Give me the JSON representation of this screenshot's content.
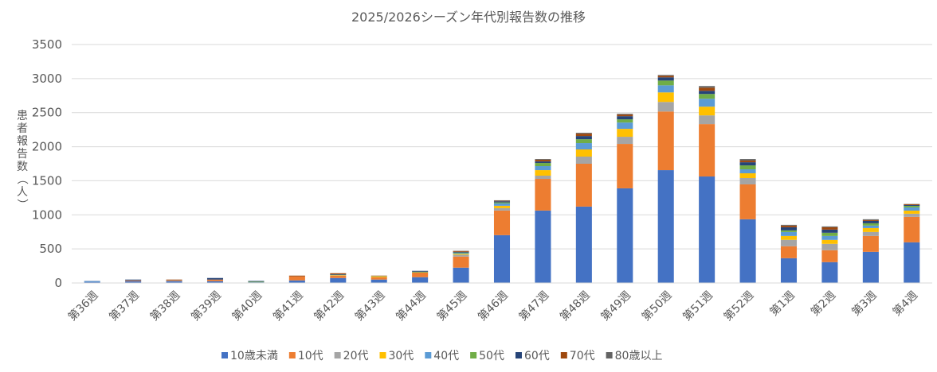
{
  "chart_data": {
    "type": "bar",
    "stacked": true,
    "title": "2025/2026シーズン年代別報告数の推移",
    "xlabel": "",
    "ylabel": "患者報告数（人）",
    "ylim": [
      0,
      3500
    ],
    "yticks": [
      0,
      500,
      1000,
      1500,
      2000,
      2500,
      3000,
      3500
    ],
    "grid": true,
    "legend_position": "bottom",
    "categories": [
      "第36週",
      "第37週",
      "第38週",
      "第39週",
      "第40週",
      "第41週",
      "第42週",
      "第43週",
      "第44週",
      "第45週",
      "第46週",
      "第47週",
      "第48週",
      "第49週",
      "第50週",
      "第51週",
      "第52週",
      "第1週",
      "第2週",
      "第3週",
      "第4週"
    ],
    "series": [
      {
        "name": "10歳未満",
        "color": "#4472C4",
        "values": [
          16,
          27,
          27,
          27,
          10,
          38,
          73,
          50,
          85,
          225,
          702,
          1063,
          1121,
          1389,
          1656,
          1563,
          935,
          364,
          306,
          457,
          597
        ]
      },
      {
        "name": "10代",
        "color": "#ED7D31",
        "values": [
          0,
          11,
          6,
          23,
          0,
          58,
          35,
          35,
          70,
          163,
          361,
          465,
          629,
          652,
          861,
          769,
          512,
          175,
          175,
          233,
          373
        ]
      },
      {
        "name": "20代",
        "color": "#A5A5A5",
        "values": [
          0,
          0,
          5,
          0,
          0,
          0,
          2,
          0,
          0,
          23,
          35,
          47,
          105,
          105,
          140,
          128,
          93,
          94,
          93,
          58,
          46
        ]
      },
      {
        "name": "30代",
        "color": "#FFC000",
        "values": [
          0,
          0,
          0,
          0,
          0,
          0,
          5,
          11,
          0,
          12,
          35,
          81,
          105,
          116,
          140,
          128,
          70,
          57,
          58,
          58,
          46
        ]
      },
      {
        "name": "40代",
        "color": "#5B9BD5",
        "values": [
          11,
          0,
          0,
          0,
          0,
          0,
          0,
          0,
          0,
          11,
          35,
          59,
          93,
          93,
          104,
          116,
          58,
          58,
          58,
          36,
          47
        ]
      },
      {
        "name": "50代",
        "color": "#70AD47",
        "values": [
          0,
          0,
          0,
          0,
          10,
          0,
          5,
          6,
          11,
          12,
          15,
          46,
          57,
          47,
          70,
          70,
          58,
          24,
          47,
          34,
          23
        ]
      },
      {
        "name": "60代",
        "color": "#264478",
        "values": [
          3,
          12,
          0,
          23,
          10,
          0,
          8,
          0,
          12,
          11,
          16,
          23,
          47,
          46,
          47,
          46,
          46,
          46,
          46,
          35,
          12
        ]
      },
      {
        "name": "70代",
        "color": "#9E480E",
        "values": [
          0,
          0,
          12,
          0,
          0,
          12,
          15,
          6,
          0,
          12,
          7,
          24,
          35,
          24,
          23,
          47,
          24,
          24,
          35,
          12,
          12
        ]
      },
      {
        "name": "80歳以上",
        "color": "#636363",
        "values": [
          0,
          0,
          0,
          0,
          0,
          0,
          0,
          0,
          0,
          4,
          8,
          11,
          12,
          11,
          12,
          23,
          23,
          11,
          12,
          12,
          4
        ]
      }
    ]
  }
}
